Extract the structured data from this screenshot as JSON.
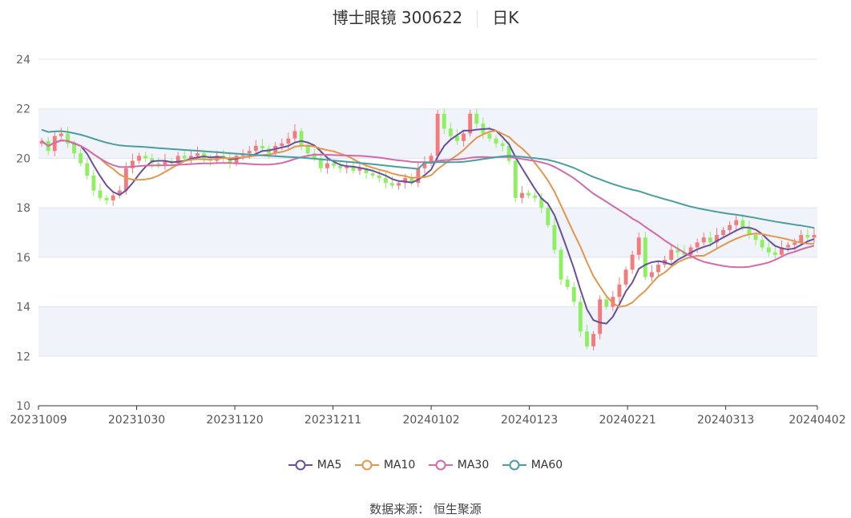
{
  "header": {
    "title": "博士眼镜 300622",
    "period": "日K"
  },
  "source": "数据来源： 恒生聚源",
  "colors": {
    "up": "#f47b7b",
    "down": "#8df05e",
    "ma5": "#6a4f9f",
    "ma10": "#e5964c",
    "ma30": "#d46aa8",
    "ma60": "#4a9ea1",
    "band": "#f0f3fa",
    "grid": "#dfe3ec"
  },
  "chart_data": {
    "type": "candlestick",
    "ylim": [
      10,
      24
    ],
    "yticks": [
      10,
      12,
      14,
      16,
      18,
      20,
      22,
      24
    ],
    "xtick_labels": [
      "20231009",
      "20231030",
      "20231120",
      "20231211",
      "20240102",
      "20240123",
      "20240221",
      "20240313",
      "20240402"
    ],
    "legend": [
      "MA5",
      "MA10",
      "MA30",
      "MA60"
    ],
    "dates": [
      "20231009",
      "20231010",
      "20231011",
      "20231012",
      "20231013",
      "20231016",
      "20231017",
      "20231018",
      "20231019",
      "20231020",
      "20231023",
      "20231024",
      "20231025",
      "20231026",
      "20231027",
      "20231030",
      "20231031",
      "20231101",
      "20231102",
      "20231103",
      "20231106",
      "20231107",
      "20231108",
      "20231109",
      "20231110",
      "20231113",
      "20231114",
      "20231115",
      "20231116",
      "20231117",
      "20231120",
      "20231121",
      "20231122",
      "20231123",
      "20231124",
      "20231127",
      "20231128",
      "20231129",
      "20231130",
      "20231201",
      "20231204",
      "20231205",
      "20231206",
      "20231207",
      "20231208",
      "20231211",
      "20231212",
      "20231213",
      "20231214",
      "20231215",
      "20231218",
      "20231219",
      "20231220",
      "20231221",
      "20231222",
      "20231225",
      "20231226",
      "20231227",
      "20231228",
      "20231229",
      "20240102",
      "20240103",
      "20240104",
      "20240105",
      "20240108",
      "20240109",
      "20240110",
      "20240111",
      "20240112",
      "20240115",
      "20240116",
      "20240117",
      "20240118",
      "20240119",
      "20240122",
      "20240123",
      "20240124",
      "20240125",
      "20240126",
      "20240129",
      "20240130",
      "20240131",
      "20240201",
      "20240202",
      "20240205",
      "20240206",
      "20240207",
      "20240208",
      "20240219",
      "20240220",
      "20240221",
      "20240222",
      "20240223",
      "20240226",
      "20240227",
      "20240228",
      "20240229",
      "20240301",
      "20240304",
      "20240305",
      "20240306",
      "20240307",
      "20240308",
      "20240311",
      "20240312",
      "20240313",
      "20240314",
      "20240315",
      "20240318",
      "20240319",
      "20240320",
      "20240321",
      "20240322",
      "20240325",
      "20240326",
      "20240327",
      "20240328",
      "20240329",
      "20240401",
      "20240402"
    ],
    "closes": [
      20.7,
      20.3,
      20.9,
      21.0,
      20.6,
      20.2,
      19.8,
      19.3,
      18.7,
      18.4,
      18.3,
      18.5,
      18.7,
      19.6,
      19.9,
      20.1,
      20.0,
      19.8,
      19.7,
      19.9,
      19.8,
      20.1,
      20.0,
      20.1,
      20.2,
      20.0,
      19.9,
      20.1,
      20.0,
      19.8,
      20.1,
      20.2,
      20.3,
      20.5,
      20.4,
      20.2,
      20.5,
      20.6,
      20.8,
      21.1,
      20.5,
      20.2,
      20.0,
      19.6,
      19.8,
      19.7,
      19.6,
      19.7,
      19.5,
      19.6,
      19.4,
      19.3,
      19.2,
      19.0,
      18.9,
      19.0,
      19.2,
      19.0,
      19.6,
      19.8,
      20.1,
      21.8,
      21.2,
      20.9,
      20.7,
      21.0,
      21.8,
      21.4,
      21.0,
      20.8,
      20.6,
      20.5,
      19.9,
      18.4,
      18.6,
      18.5,
      18.4,
      18.0,
      17.3,
      16.3,
      15.1,
      14.8,
      14.2,
      13.0,
      12.4,
      12.9,
      14.3,
      14.0,
      14.4,
      14.9,
      15.5,
      16.1,
      16.8,
      15.2,
      15.4,
      15.7,
      15.9,
      16.3,
      16.2,
      16.1,
      16.4,
      16.6,
      16.8,
      16.6,
      16.9,
      17.1,
      17.3,
      17.5,
      17.2,
      16.9,
      16.7,
      16.4,
      16.2,
      16.1,
      16.4,
      16.5,
      16.6,
      16.9,
      16.8,
      16.9
    ]
  }
}
